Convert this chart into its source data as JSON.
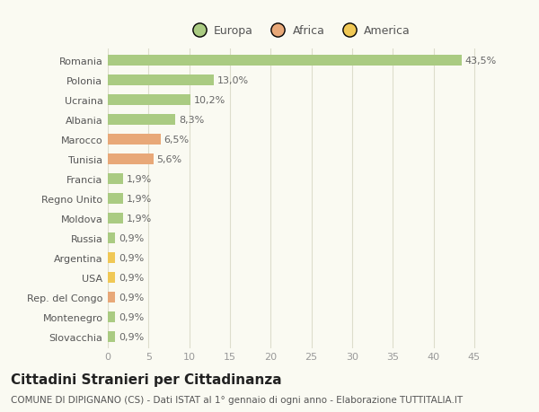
{
  "countries": [
    "Romania",
    "Polonia",
    "Ucraina",
    "Albania",
    "Marocco",
    "Tunisia",
    "Francia",
    "Regno Unito",
    "Moldova",
    "Russia",
    "Argentina",
    "USA",
    "Rep. del Congo",
    "Montenegro",
    "Slovacchia"
  ],
  "values": [
    43.5,
    13.0,
    10.2,
    8.3,
    6.5,
    5.6,
    1.9,
    1.9,
    1.9,
    0.9,
    0.9,
    0.9,
    0.9,
    0.9,
    0.9
  ],
  "labels": [
    "43,5%",
    "13,0%",
    "10,2%",
    "8,3%",
    "6,5%",
    "5,6%",
    "1,9%",
    "1,9%",
    "1,9%",
    "0,9%",
    "0,9%",
    "0,9%",
    "0,9%",
    "0,9%",
    "0,9%"
  ],
  "continents": [
    "Europa",
    "Europa",
    "Europa",
    "Europa",
    "Africa",
    "Africa",
    "Europa",
    "Europa",
    "Europa",
    "Europa",
    "America",
    "America",
    "Africa",
    "Europa",
    "Europa"
  ],
  "colors": {
    "Europa": "#aacb82",
    "Africa": "#e8a878",
    "America": "#f0c855"
  },
  "xlim": [
    0,
    47
  ],
  "xticks": [
    0,
    5,
    10,
    15,
    20,
    25,
    30,
    35,
    40,
    45
  ],
  "title": "Cittadini Stranieri per Cittadinanza",
  "subtitle": "COMUNE DI DIPIGNANO (CS) - Dati ISTAT al 1° gennaio di ogni anno - Elaborazione TUTTITALIA.IT",
  "bg_color": "#fafaf2",
  "bar_height": 0.55,
  "label_fontsize": 8,
  "ytick_fontsize": 8,
  "xtick_fontsize": 8,
  "title_fontsize": 11,
  "subtitle_fontsize": 7.5,
  "legend_fontsize": 9
}
